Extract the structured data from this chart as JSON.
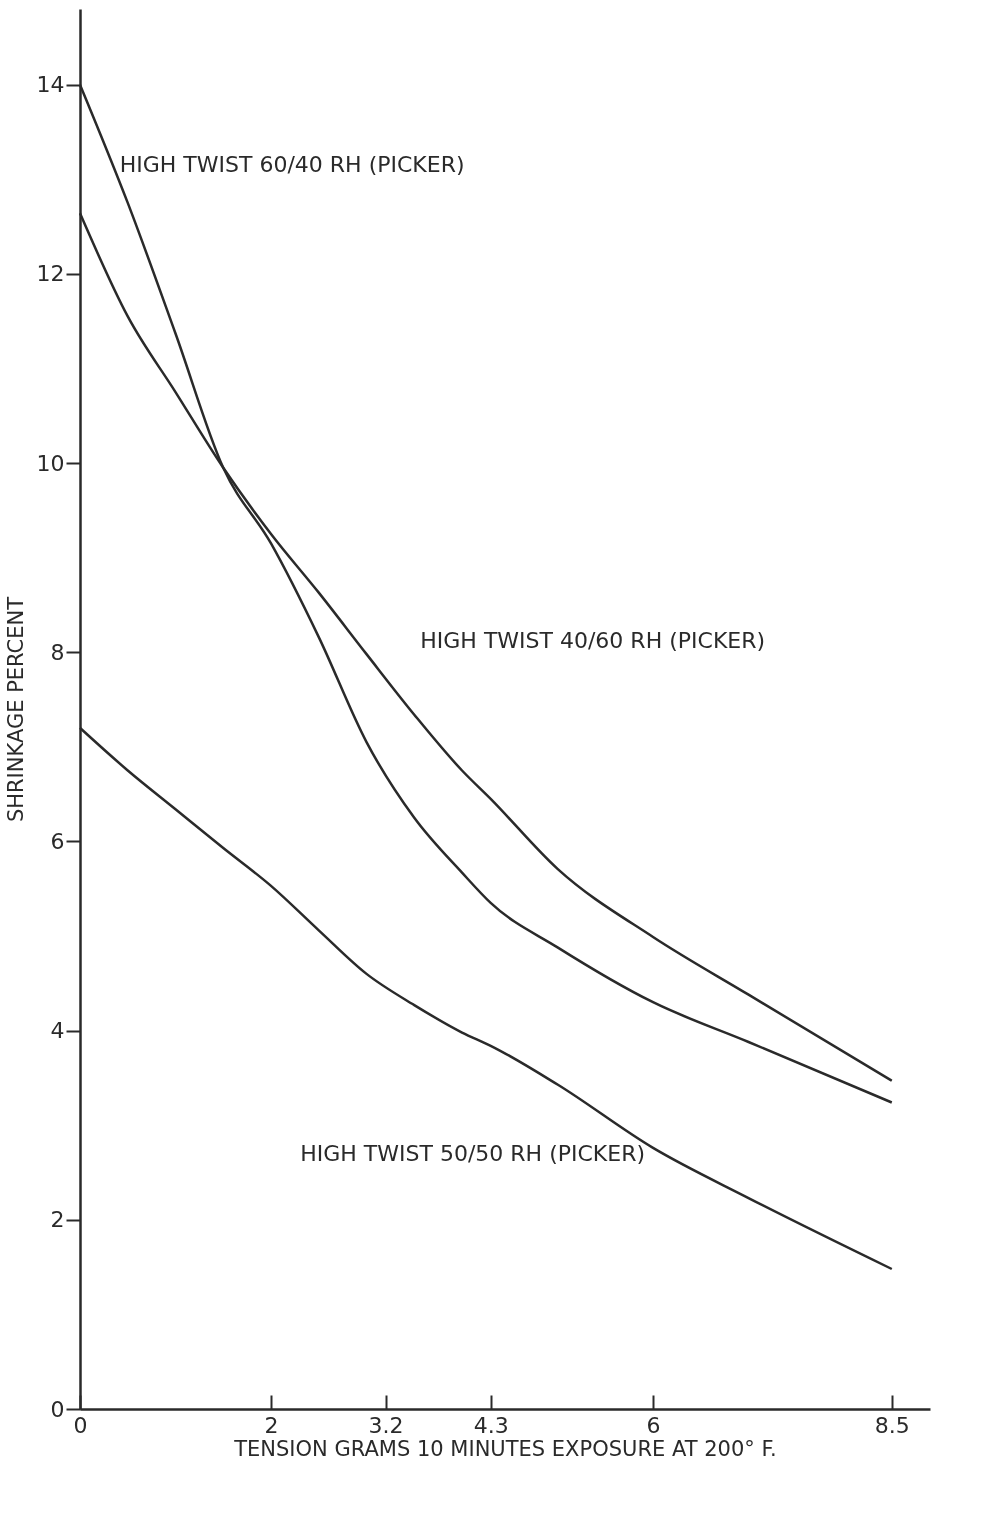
{
  "chart_data": {
    "type": "line",
    "xlabel": "TENSION GRAMS 10 MINUTES EXPOSURE AT 200° F.",
    "ylabel": "SHRINKAGE PERCENT",
    "x": [
      0,
      0.5,
      1,
      1.5,
      2,
      2.5,
      3,
      3.5,
      4,
      4.3,
      5,
      6,
      7,
      8.5
    ],
    "xlim": [
      0,
      8.9
    ],
    "xticks": [
      0,
      2,
      3.2,
      4.3,
      6,
      8.5
    ],
    "ylim": [
      0,
      14.8
    ],
    "yticks": [
      0,
      2,
      4,
      6,
      8,
      10,
      12,
      14
    ],
    "grid": false,
    "legend": false,
    "marker": "none",
    "line_style": "solid",
    "series": [
      {
        "name": "HIGH TWIST 60/40 RH (PICKER)",
        "color": "#2a2a2a",
        "values": [
          14.0,
          12.75,
          11.37,
          9.95,
          9.15,
          8.16,
          7.05,
          6.25,
          5.67,
          5.35,
          4.88,
          4.3,
          3.88,
          3.24
        ]
      },
      {
        "name": "HIGH TWIST 40/60 RH (PICKER)",
        "color": "#2a2a2a",
        "values": [
          12.64,
          11.55,
          10.75,
          9.95,
          9.25,
          8.63,
          7.98,
          7.34,
          6.75,
          6.45,
          5.71,
          4.99,
          4.38,
          3.47
        ]
      },
      {
        "name": "HIGH TWIST 50/50 RH (PICKER)",
        "color": "#2a2a2a",
        "values": [
          7.2,
          6.75,
          6.34,
          5.93,
          5.53,
          5.06,
          4.6,
          4.27,
          3.98,
          3.84,
          3.43,
          2.76,
          2.23,
          1.48
        ]
      }
    ]
  }
}
